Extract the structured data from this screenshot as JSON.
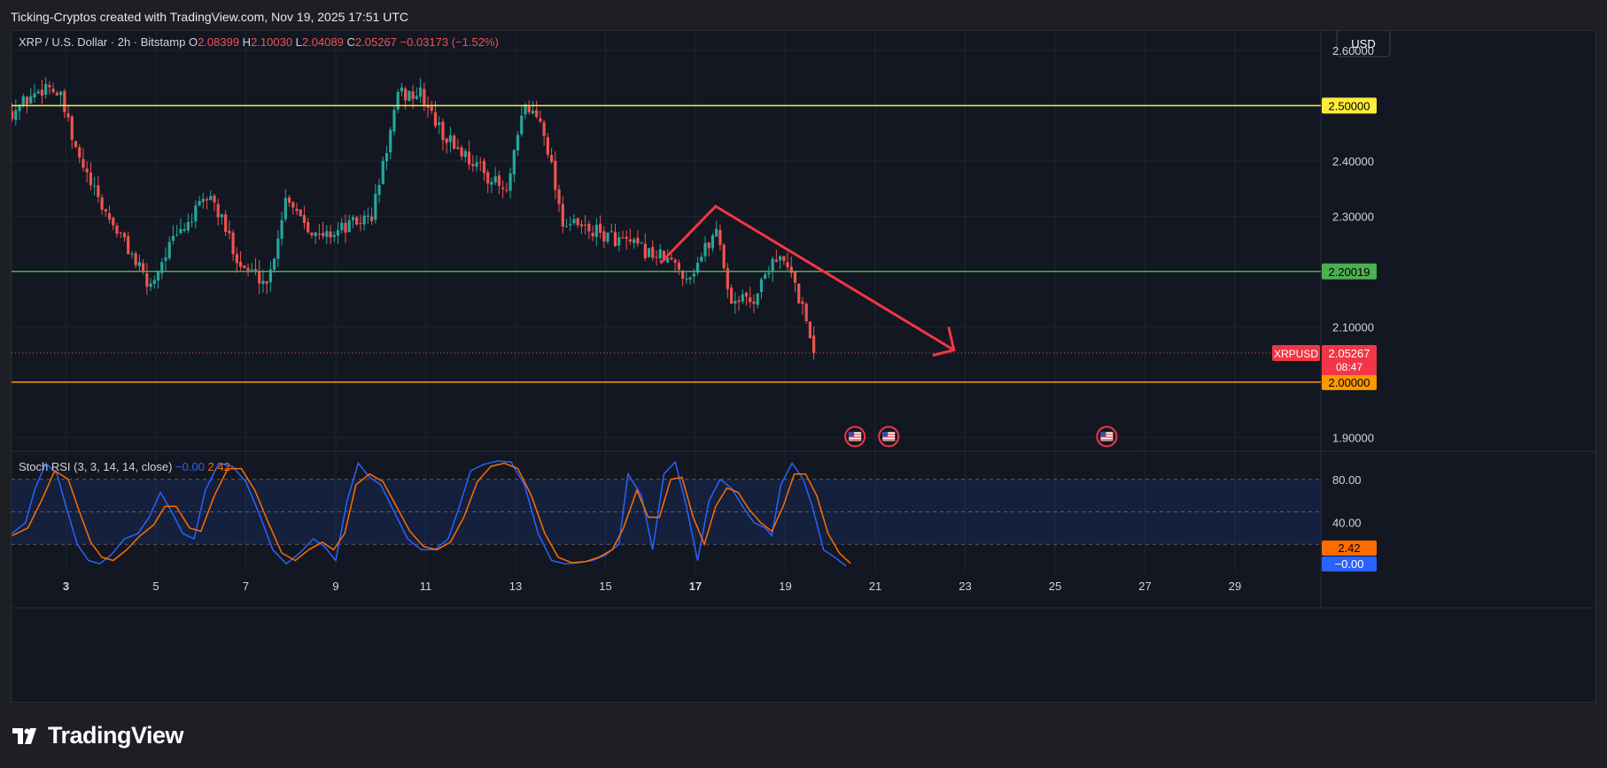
{
  "caption": "Ticking-Cryptos created with TradingView.com, Nov 19, 2025 17:51 UTC",
  "currency_button": "USD",
  "brand": "TradingView",
  "legend": {
    "symbol": "XRP / U.S. Dollar · 2h · Bitstamp",
    "o_label": "O",
    "o": "2.08399",
    "h_label": "H",
    "h": "2.10030",
    "l_label": "L",
    "l": "2.04089",
    "c_label": "C",
    "c": "2.05267",
    "change": "−0.03173 (−1.52%)"
  },
  "colors": {
    "up": "#26a69a",
    "down": "#ef5350",
    "yellow": "#ffeb3b",
    "green": "#4caf50",
    "orange": "#ff9800",
    "arrow": "#f23645",
    "k": "#2962ff",
    "d": "#ff6d00"
  },
  "chart_data": [
    {
      "type": "candlestick",
      "title": "XRP / U.S. Dollar · 2h · Bitstamp",
      "ylim": [
        1.875,
        2.635
      ],
      "y_ticks": [
        "2.60000",
        "2.40000",
        "2.30000",
        "2.10000",
        "1.90000"
      ],
      "x_ticks": [
        "3",
        "5",
        "7",
        "9",
        "11",
        "13",
        "15",
        "17",
        "19",
        "21",
        "23",
        "25",
        "27",
        "29"
      ],
      "x_tick_bold": [
        "3",
        "17"
      ],
      "x_range_days": [
        1.8,
        30.1
      ],
      "horizontal_levels": [
        {
          "value": 2.5,
          "label": "2.50000",
          "color": "#ffeb3b"
        },
        {
          "value": 2.20019,
          "label": "2.20019",
          "color": "#4caf50"
        },
        {
          "value": 2.0,
          "label": "2.00000",
          "color": "#ff9800"
        }
      ],
      "last_price": {
        "value": 2.05267,
        "label": "2.05267",
        "symbol": "XRPUSD",
        "countdown": "08:47"
      },
      "trend_arrow": [
        {
          "day": 16.22,
          "price": 2.215
        },
        {
          "day": 17.45,
          "price": 2.318
        },
        {
          "day": 22.75,
          "price": 2.058
        }
      ],
      "event_days": [
        20.55,
        21.3,
        26.15
      ],
      "key_points": [
        {
          "day": 1.8,
          "price": 2.49
        },
        {
          "day": 2.6,
          "price": 2.54
        },
        {
          "day": 2.9,
          "price": 2.51
        },
        {
          "day": 3.2,
          "price": 2.42
        },
        {
          "day": 3.7,
          "price": 2.33
        },
        {
          "day": 4.4,
          "price": 2.24
        },
        {
          "day": 4.85,
          "price": 2.17
        },
        {
          "day": 5.25,
          "price": 2.24
        },
        {
          "day": 6.2,
          "price": 2.34
        },
        {
          "day": 6.9,
          "price": 2.21
        },
        {
          "day": 7.5,
          "price": 2.18
        },
        {
          "day": 7.9,
          "price": 2.34
        },
        {
          "day": 8.6,
          "price": 2.26
        },
        {
          "day": 9.8,
          "price": 2.3
        },
        {
          "day": 10.4,
          "price": 2.52
        },
        {
          "day": 10.9,
          "price": 2.52
        },
        {
          "day": 11.35,
          "price": 2.45
        },
        {
          "day": 12.3,
          "price": 2.38
        },
        {
          "day": 12.8,
          "price": 2.34
        },
        {
          "day": 13.2,
          "price": 2.5
        },
        {
          "day": 13.6,
          "price": 2.47
        },
        {
          "day": 14.05,
          "price": 2.29
        },
        {
          "day": 15.2,
          "price": 2.26
        },
        {
          "day": 16.4,
          "price": 2.22
        },
        {
          "day": 16.85,
          "price": 2.19
        },
        {
          "day": 17.5,
          "price": 2.28
        },
        {
          "day": 17.75,
          "price": 2.15
        },
        {
          "day": 18.3,
          "price": 2.15
        },
        {
          "day": 18.75,
          "price": 2.23
        },
        {
          "day": 19.1,
          "price": 2.2
        },
        {
          "day": 19.4,
          "price": 2.13
        },
        {
          "day": 19.7,
          "price": 2.05267
        }
      ]
    },
    {
      "type": "line",
      "title": "Stoch RSI (3, 3, 14, 14, close)",
      "legend_k": "−0.00",
      "legend_d": "2.42",
      "ylim": [
        -6,
        106
      ],
      "y_ticks": [
        "80.00",
        "40.00"
      ],
      "bands": [
        80,
        50,
        20
      ],
      "series": [
        {
          "name": "%K",
          "color": "#2962ff",
          "points": [
            [
              1.8,
              30
            ],
            [
              2.1,
              40
            ],
            [
              2.3,
              70
            ],
            [
              2.55,
              95
            ],
            [
              2.8,
              85
            ],
            [
              3.0,
              55
            ],
            [
              3.25,
              20
            ],
            [
              3.5,
              5
            ],
            [
              3.75,
              2
            ],
            [
              4.0,
              10
            ],
            [
              4.3,
              25
            ],
            [
              4.6,
              30
            ],
            [
              4.85,
              45
            ],
            [
              5.1,
              68
            ],
            [
              5.35,
              50
            ],
            [
              5.6,
              30
            ],
            [
              5.85,
              25
            ],
            [
              6.1,
              70
            ],
            [
              6.4,
              95
            ],
            [
              6.7,
              92
            ],
            [
              7.0,
              78
            ],
            [
              7.3,
              48
            ],
            [
              7.6,
              15
            ],
            [
              7.9,
              2
            ],
            [
              8.2,
              12
            ],
            [
              8.5,
              25
            ],
            [
              8.75,
              18
            ],
            [
              9.0,
              5
            ],
            [
              9.25,
              60
            ],
            [
              9.5,
              95
            ],
            [
              9.75,
              82
            ],
            [
              10.0,
              75
            ],
            [
              10.3,
              50
            ],
            [
              10.6,
              25
            ],
            [
              10.9,
              15
            ],
            [
              11.2,
              15
            ],
            [
              11.5,
              25
            ],
            [
              11.75,
              55
            ],
            [
              12.0,
              88
            ],
            [
              12.3,
              94
            ],
            [
              12.6,
              97
            ],
            [
              12.9,
              96
            ],
            [
              13.2,
              75
            ],
            [
              13.5,
              30
            ],
            [
              13.8,
              5
            ],
            [
              14.1,
              2
            ],
            [
              14.4,
              3
            ],
            [
              14.7,
              5
            ],
            [
              15.0,
              10
            ],
            [
              15.3,
              20
            ],
            [
              15.5,
              85
            ],
            [
              15.8,
              65
            ],
            [
              16.05,
              15
            ],
            [
              16.3,
              85
            ],
            [
              16.55,
              96
            ],
            [
              16.8,
              55
            ],
            [
              17.05,
              5
            ],
            [
              17.3,
              60
            ],
            [
              17.55,
              80
            ],
            [
              17.8,
              72
            ],
            [
              18.05,
              55
            ],
            [
              18.3,
              40
            ],
            [
              18.55,
              35
            ],
            [
              18.7,
              28
            ],
            [
              18.9,
              75
            ],
            [
              19.15,
              95
            ],
            [
              19.4,
              80
            ],
            [
              19.6,
              55
            ],
            [
              19.85,
              15
            ],
            [
              20.1,
              8
            ],
            [
              20.35,
              0
            ]
          ]
        },
        {
          "name": "%D",
          "color": "#ff6d00",
          "points": [
            [
              1.8,
              28
            ],
            [
              2.15,
              35
            ],
            [
              2.45,
              60
            ],
            [
              2.75,
              88
            ],
            [
              3.05,
              80
            ],
            [
              3.3,
              50
            ],
            [
              3.55,
              22
            ],
            [
              3.8,
              8
            ],
            [
              4.05,
              5
            ],
            [
              4.35,
              15
            ],
            [
              4.65,
              28
            ],
            [
              4.95,
              38
            ],
            [
              5.2,
              55
            ],
            [
              5.45,
              55
            ],
            [
              5.75,
              35
            ],
            [
              6.0,
              32
            ],
            [
              6.3,
              65
            ],
            [
              6.6,
              90
            ],
            [
              6.9,
              90
            ],
            [
              7.2,
              70
            ],
            [
              7.5,
              40
            ],
            [
              7.8,
              12
            ],
            [
              8.1,
              5
            ],
            [
              8.4,
              15
            ],
            [
              8.7,
              22
            ],
            [
              8.95,
              15
            ],
            [
              9.2,
              30
            ],
            [
              9.45,
              75
            ],
            [
              9.75,
              85
            ],
            [
              10.05,
              78
            ],
            [
              10.35,
              55
            ],
            [
              10.65,
              32
            ],
            [
              10.95,
              18
            ],
            [
              11.25,
              15
            ],
            [
              11.55,
              22
            ],
            [
              11.85,
              45
            ],
            [
              12.15,
              78
            ],
            [
              12.45,
              92
            ],
            [
              12.75,
              95
            ],
            [
              13.05,
              90
            ],
            [
              13.35,
              65
            ],
            [
              13.65,
              30
            ],
            [
              13.95,
              8
            ],
            [
              14.25,
              3
            ],
            [
              14.55,
              4
            ],
            [
              14.85,
              8
            ],
            [
              15.15,
              15
            ],
            [
              15.4,
              35
            ],
            [
              15.7,
              70
            ],
            [
              15.95,
              45
            ],
            [
              16.2,
              45
            ],
            [
              16.45,
              80
            ],
            [
              16.7,
              82
            ],
            [
              16.95,
              45
            ],
            [
              17.2,
              20
            ],
            [
              17.45,
              55
            ],
            [
              17.7,
              72
            ],
            [
              17.95,
              68
            ],
            [
              18.2,
              52
            ],
            [
              18.45,
              40
            ],
            [
              18.7,
              32
            ],
            [
              18.95,
              55
            ],
            [
              19.2,
              85
            ],
            [
              19.45,
              85
            ],
            [
              19.7,
              65
            ],
            [
              19.95,
              30
            ],
            [
              20.2,
              12
            ],
            [
              20.45,
              2.42
            ]
          ]
        }
      ],
      "last_values": [
        {
          "label": "2.42",
          "color": "#ff6d00"
        },
        {
          "label": "−0.00",
          "color": "#2962ff"
        }
      ]
    }
  ]
}
